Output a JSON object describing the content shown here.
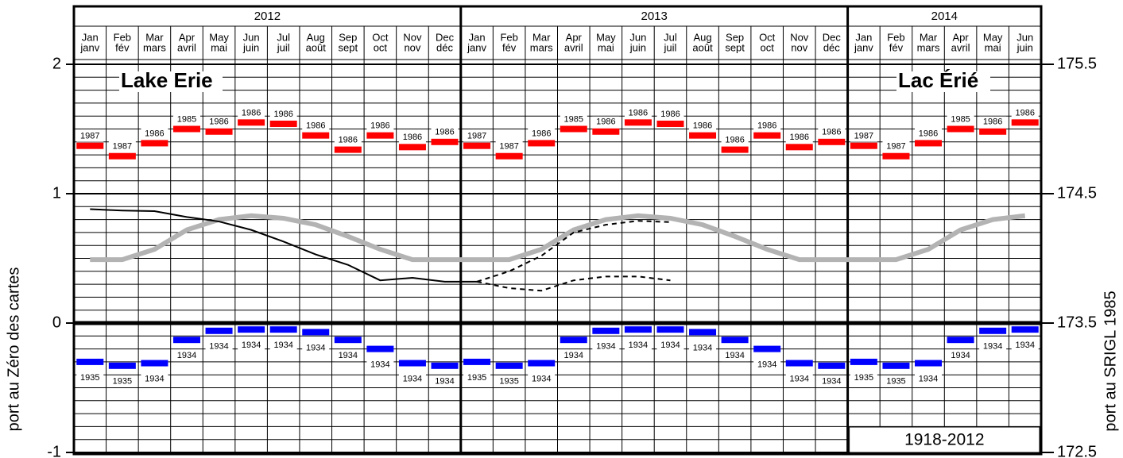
{
  "chart_data": {
    "type": "monthly-range",
    "title": "Lake Erie",
    "title_fr": "Lac Érié",
    "period": "1918-2012",
    "ylabel": "port au Zéro des cartes",
    "y2label": "port au SRIGL 1985",
    "years": [
      {
        "label": "2012",
        "months": [
          {
            "en": "Jan",
            "fr": "janv"
          },
          {
            "en": "Feb",
            "fr": "fév"
          },
          {
            "en": "Mar",
            "fr": "mars"
          },
          {
            "en": "Apr",
            "fr": "avril"
          },
          {
            "en": "May",
            "fr": "mai"
          },
          {
            "en": "Jun",
            "fr": "juin"
          },
          {
            "en": "Jul",
            "fr": "juil"
          },
          {
            "en": "Aug",
            "fr": "août"
          },
          {
            "en": "Sep",
            "fr": "sept"
          },
          {
            "en": "Oct",
            "fr": "oct"
          },
          {
            "en": "Nov",
            "fr": "nov"
          },
          {
            "en": "Dec",
            "fr": "déc"
          }
        ]
      },
      {
        "label": "2013",
        "months": [
          {
            "en": "Jan",
            "fr": "janv"
          },
          {
            "en": "Feb",
            "fr": "fév"
          },
          {
            "en": "Mar",
            "fr": "mars"
          },
          {
            "en": "Apr",
            "fr": "avril"
          },
          {
            "en": "May",
            "fr": "mai"
          },
          {
            "en": "Jun",
            "fr": "juin"
          },
          {
            "en": "Jul",
            "fr": "juil"
          },
          {
            "en": "Aug",
            "fr": "août"
          },
          {
            "en": "Sep",
            "fr": "sept"
          },
          {
            "en": "Oct",
            "fr": "oct"
          },
          {
            "en": "Nov",
            "fr": "nov"
          },
          {
            "en": "Dec",
            "fr": "déc"
          }
        ]
      },
      {
        "label": "2014",
        "months": [
          {
            "en": "Jan",
            "fr": "janv"
          },
          {
            "en": "Feb",
            "fr": "fév"
          },
          {
            "en": "Mar",
            "fr": "mars"
          },
          {
            "en": "Apr",
            "fr": "avril"
          },
          {
            "en": "May",
            "fr": "mai"
          },
          {
            "en": "Jun",
            "fr": "juin"
          }
        ]
      }
    ],
    "ylim": [
      -1,
      2
    ],
    "yticks": [
      -1,
      0,
      1,
      2
    ],
    "y2lim": [
      172.5,
      175.5
    ],
    "y2ticks": [
      172.5,
      173.5,
      174.5,
      175.5
    ],
    "grid": true,
    "highs": {
      "color": "#ff0000",
      "values": [
        1.37,
        1.29,
        1.39,
        1.5,
        1.48,
        1.55,
        1.54,
        1.45,
        1.34,
        1.45,
        1.36,
        1.4,
        1.37,
        1.29,
        1.39,
        1.5,
        1.48,
        1.55,
        1.54,
        1.45,
        1.34,
        1.45,
        1.36,
        1.4,
        1.37,
        1.29,
        1.39,
        1.5,
        1.48,
        1.55
      ],
      "value_labels": [
        "1987",
        "1987",
        "1986",
        "1985",
        "1986",
        "1986",
        "1986",
        "1986",
        "1986",
        "1986",
        "1986",
        "1986",
        "1987",
        "1987",
        "1986",
        "1985",
        "1986",
        "1986",
        "1986",
        "1986",
        "1986",
        "1986",
        "1986",
        "1986",
        "1987",
        "1987",
        "1986",
        "1985",
        "1986",
        "1986"
      ]
    },
    "lows": {
      "color": "#0000ff",
      "values": [
        -0.3,
        -0.33,
        -0.31,
        -0.13,
        -0.06,
        -0.05,
        -0.05,
        -0.07,
        -0.13,
        -0.2,
        -0.31,
        -0.33,
        -0.3,
        -0.33,
        -0.31,
        -0.13,
        -0.06,
        -0.05,
        -0.05,
        -0.07,
        -0.13,
        -0.2,
        -0.31,
        -0.33,
        -0.3,
        -0.33,
        -0.31,
        -0.13,
        -0.06,
        -0.05
      ],
      "value_labels": [
        "1935",
        "1935",
        "1934",
        "1934",
        "1934",
        "1934",
        "1934",
        "1934",
        "1934",
        "1934",
        "1934",
        "1934",
        "1935",
        "1935",
        "1934",
        "1934",
        "1934",
        "1934",
        "1934",
        "1934",
        "1934",
        "1934",
        "1934",
        "1934",
        "1935",
        "1935",
        "1934",
        "1934",
        "1934",
        "1934"
      ]
    },
    "lines": [
      {
        "color": "#b3b3b3",
        "style": "solid",
        "width": 6,
        "values": [
          0.49,
          0.49,
          0.57,
          0.72,
          0.8,
          0.83,
          0.81,
          0.76,
          0.67,
          0.57,
          0.49,
          0.49,
          0.49,
          0.49,
          0.57,
          0.72,
          0.8,
          0.83,
          0.81,
          0.76,
          0.67,
          0.57,
          0.49,
          0.49,
          0.49,
          0.49,
          0.57,
          0.72,
          0.8,
          0.83
        ]
      },
      {
        "color": "#000000",
        "style": "solid",
        "width": 2,
        "values": [
          0.88,
          0.87,
          0.865,
          0.82,
          0.785,
          0.72,
          0.63,
          0.53,
          0.45,
          0.33,
          0.35,
          0.32,
          0.32,
          null,
          null,
          null,
          null,
          null,
          null,
          null,
          null,
          null,
          null,
          null,
          null,
          null,
          null,
          null,
          null,
          null
        ]
      },
      {
        "color": "#000000",
        "style": "dashed",
        "width": 2,
        "values": [
          null,
          null,
          null,
          null,
          null,
          null,
          null,
          null,
          null,
          null,
          null,
          null,
          0.32,
          0.4,
          0.52,
          0.7,
          0.76,
          0.79,
          0.78,
          null,
          null,
          null,
          null,
          null,
          null,
          null,
          null,
          null,
          null,
          null
        ]
      },
      {
        "color": "#000000",
        "style": "dashed",
        "width": 2,
        "values": [
          null,
          null,
          null,
          null,
          null,
          null,
          null,
          null,
          null,
          null,
          null,
          null,
          0.32,
          0.27,
          0.25,
          0.33,
          0.36,
          0.36,
          0.33,
          null,
          null,
          null,
          null,
          null,
          null,
          null,
          null,
          null,
          null,
          null
        ]
      }
    ]
  }
}
